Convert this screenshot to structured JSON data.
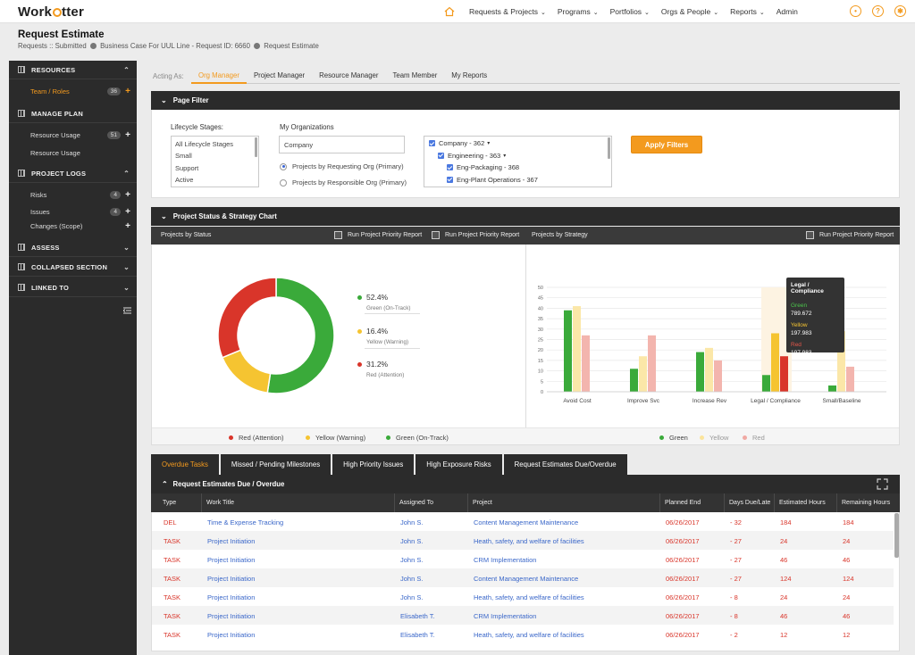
{
  "app": {
    "logo_pre": "Work",
    "logo_post": "tter"
  },
  "nav": {
    "items": [
      "Requests & Projects",
      "Programs",
      "Portfolios",
      "Orgs & People",
      "Reports",
      "Admin"
    ],
    "has_chevron": [
      true,
      true,
      true,
      true,
      true,
      false
    ]
  },
  "header": {
    "title": "Request Estimate",
    "breadcrumb": [
      "Requests :: Submitted",
      "Business Case For UUL Line - Request ID: 6660",
      "Request Estimate"
    ]
  },
  "sidebar": {
    "sections": [
      {
        "label": "RESOURCES",
        "chevron": "up",
        "items": [
          {
            "label": "Team / Roles",
            "badge": "36",
            "plus": true,
            "active": true
          }
        ]
      },
      {
        "label": "MANAGE PLAN",
        "chevron": "",
        "items": [
          {
            "label": "Resource Usage",
            "badge": "51",
            "plus": true,
            "active": false
          },
          {
            "label": "Resource Usage",
            "badge": "",
            "plus": false,
            "active": false
          }
        ]
      },
      {
        "label": "PROJECT LOGS",
        "chevron": "up",
        "items": [
          {
            "label": "Risks",
            "badge": "4",
            "plus": true,
            "active": false
          },
          {
            "label": "Issues",
            "badge": "4",
            "plus": true,
            "active": false
          },
          {
            "label": "Changes (Scope)",
            "badge": "",
            "plus": true,
            "active": false
          }
        ]
      },
      {
        "label": "ASSESS",
        "chevron": "down",
        "items": []
      },
      {
        "label": "COLLAPSED SECTION",
        "chevron": "down",
        "items": []
      },
      {
        "label": "LINKED TO",
        "chevron": "down",
        "items": []
      }
    ]
  },
  "acting": {
    "label": "Acting As:",
    "tabs": [
      "Org Manager",
      "Project Manager",
      "Resource Manager",
      "Team Member",
      "My Reports"
    ],
    "active": 0
  },
  "page_filter": {
    "title": "Page Filter",
    "lifecycle_label": "Lifecycle Stages:",
    "lifecycle_options": [
      "All Lifecycle Stages",
      "Small",
      "Support",
      "Active"
    ],
    "org_label": "My Organizations",
    "org_input_value": "Company",
    "radios": [
      {
        "label": "Projects by Requesting Org (Primary)",
        "checked": true
      },
      {
        "label": "Projects by Responsible Org (Primary)",
        "checked": false
      }
    ],
    "tree": [
      {
        "label": "Company - 362",
        "level": 0,
        "chevron": true
      },
      {
        "label": "Engineering - 363",
        "level": 1,
        "chevron": true
      },
      {
        "label": "Eng-Packaging - 368",
        "level": 2,
        "chevron": false
      },
      {
        "label": "Eng-Plant Operations - 367",
        "level": 2,
        "chevron": false
      }
    ],
    "apply_label": "Apply Filters"
  },
  "status_chart": {
    "title": "Project Status & Strategy Chart",
    "left_label": "Projects by Status",
    "right_label": "Projects by Strategy",
    "run_label": "Run Project Priority Report"
  },
  "colors": {
    "red": "#d9352a",
    "yellow": "#f5c431",
    "green": "#3aaa3a",
    "accent": "#f39a1e"
  },
  "chart_data": [
    {
      "type": "pie",
      "categories": [
        "Green (On-Track)",
        "Yellow (Warning)",
        "Red (Attention)"
      ],
      "values": [
        52.4,
        16.4,
        31.2
      ],
      "labels": [
        "52.4%",
        "16.4%",
        "31.2%"
      ],
      "legend": [
        "Red (Attention)",
        "Yellow (Warning)",
        "Green (On-Track)"
      ]
    },
    {
      "type": "bar",
      "categories": [
        "Avoid Cost",
        "Improve Svc",
        "Increase Rev",
        "Legal / Compliance",
        "Small/Baseline"
      ],
      "series": [
        {
          "name": "Green",
          "values": [
            39,
            11,
            19,
            8,
            3
          ]
        },
        {
          "name": "Yellow",
          "values": [
            41,
            17,
            21,
            28,
            29
          ]
        },
        {
          "name": "Red",
          "values": [
            27,
            27,
            15,
            17,
            12
          ]
        }
      ],
      "ylim": [
        0,
        50
      ],
      "yticks": [
        0,
        5,
        10,
        15,
        20,
        25,
        30,
        35,
        40,
        45,
        50
      ],
      "legend": [
        "Green",
        "Yellow",
        "Red"
      ],
      "tooltip": {
        "title": "Legal / Compliance",
        "rows": [
          {
            "name": "Green",
            "value": "789.672"
          },
          {
            "name": "Yellow",
            "value": "197.983"
          },
          {
            "name": "Red",
            "value": "197.983"
          }
        ]
      }
    }
  ],
  "bottom_tabs": {
    "items": [
      "Overdue Tasks",
      "Missed / Pending Milestones",
      "High Priority Issues",
      "High Exposure Risks",
      "Request Estimates Due/Overdue"
    ],
    "active": 0
  },
  "table": {
    "title": "Request Estimates Due / Overdue",
    "columns": [
      "Type",
      "Work Title",
      "Assigned To",
      "Project",
      "Planned End",
      "Days Due/Late",
      "Estimated Hours",
      "Remaining Hours"
    ],
    "rows": [
      [
        "DEL",
        "Time & Expense Tracking",
        "John S.",
        "Content Management Maintenance",
        "06/26/2017",
        "- 32",
        "184",
        "184"
      ],
      [
        "TASK",
        "Project Initiation",
        "John S.",
        "Heath, safety, and welfare of facilities",
        "06/26/2017",
        "- 27",
        "24",
        "24"
      ],
      [
        "TASK",
        "Project Initiation",
        "John S.",
        "CRM Implementation",
        "06/26/2017",
        "- 27",
        "46",
        "46"
      ],
      [
        "TASK",
        "Project Initiation",
        "John S.",
        "Content Management Maintenance",
        "06/26/2017",
        "- 27",
        "124",
        "124"
      ],
      [
        "TASK",
        "Project Initiation",
        "John S.",
        "Heath, safety, and welfare of facilities",
        "06/26/2017",
        "- 8",
        "24",
        "24"
      ],
      [
        "TASK",
        "Project Initiation",
        "Elisabeth T.",
        "CRM Implementation",
        "06/26/2017",
        "- 8",
        "46",
        "46"
      ],
      [
        "TASK",
        "Project Initiation",
        "Elisabeth T.",
        "Heath, safety, and welfare of facilities",
        "06/26/2017",
        "- 2",
        "12",
        "12"
      ]
    ]
  }
}
